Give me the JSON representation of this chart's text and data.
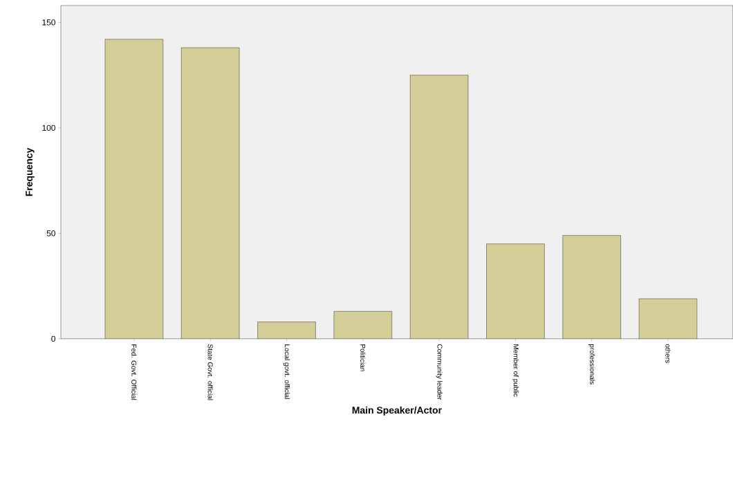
{
  "chart_data": {
    "type": "bar",
    "xlabel": "Main Speaker/Actor",
    "ylabel": "Frequency",
    "categories": [
      "Fed. Govt. Official",
      "State Govt. official",
      "Local govt. official",
      "Politician",
      "Community leader",
      "Member of public",
      "professionals",
      "others"
    ],
    "values": [
      142,
      138,
      8,
      13,
      125,
      45,
      49,
      19
    ],
    "color": "#d3ce97",
    "ylim": [
      0,
      158
    ],
    "yticks": [
      0,
      50,
      100,
      150
    ]
  }
}
